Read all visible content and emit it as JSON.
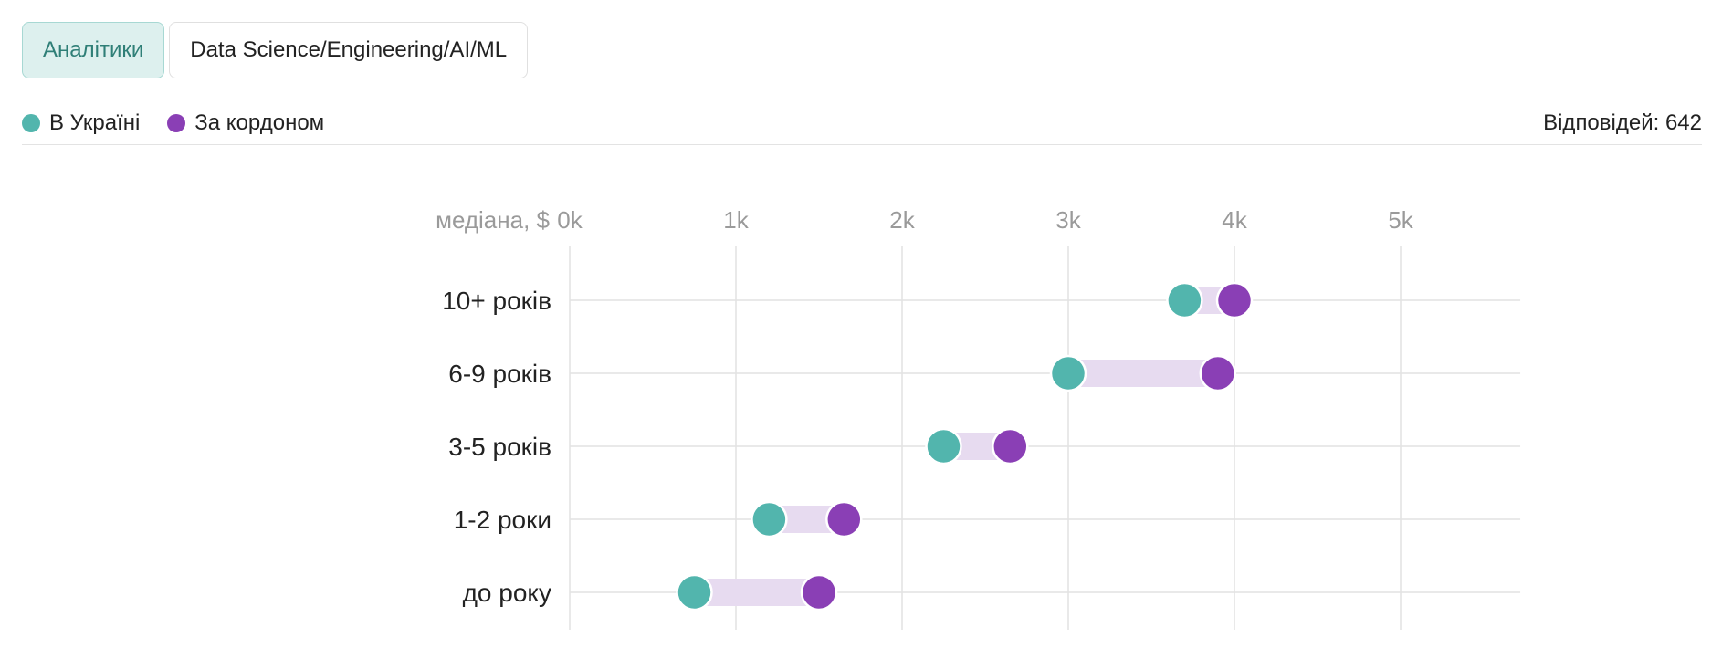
{
  "tabs": [
    {
      "label": "Аналітики",
      "active": true
    },
    {
      "label": "Data Science/Engineering/AI/ML",
      "active": false
    }
  ],
  "legend": {
    "ukraine": {
      "label": "В Україні",
      "color": "#52b5ad"
    },
    "abroad": {
      "label": "За кордоном",
      "color": "#8a3fb5"
    }
  },
  "responses_text": "Відповідей: 642",
  "chart_data": {
    "type": "dumbbell",
    "title": "",
    "axis_prefix": "медіана, $",
    "x_ticks": [
      {
        "value": 0,
        "label": "0k"
      },
      {
        "value": 1000,
        "label": "1k"
      },
      {
        "value": 2000,
        "label": "2k"
      },
      {
        "value": 3000,
        "label": "3k"
      },
      {
        "value": 4000,
        "label": "4k"
      },
      {
        "value": 5000,
        "label": "5k"
      }
    ],
    "xlim": [
      0,
      5720
    ],
    "grid": true,
    "categories": [
      "10+ років",
      "6-9 років",
      "3-5 років",
      "1-2 роки",
      "до року"
    ],
    "series": [
      {
        "name": "В Україні",
        "color": "#52b5ad",
        "values": [
          3700,
          3000,
          2250,
          1200,
          750
        ]
      },
      {
        "name": "За кордоном",
        "color": "#8a3fb5",
        "values": [
          4000,
          3900,
          2650,
          1650,
          1500
        ]
      }
    ],
    "range_color": "#e7dbf0"
  }
}
